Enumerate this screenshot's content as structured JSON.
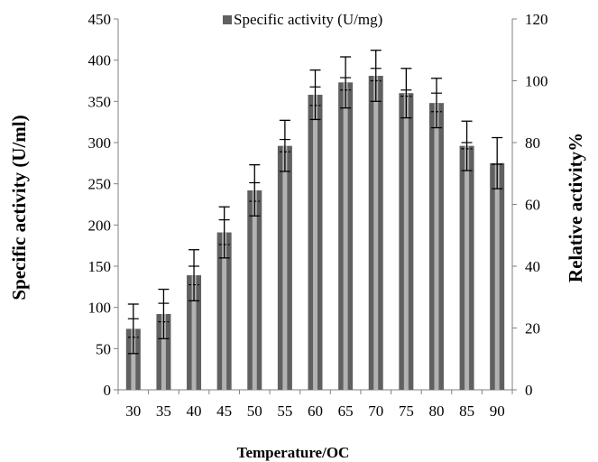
{
  "chart_data": {
    "type": "bar",
    "categories": [
      "30",
      "35",
      "40",
      "45",
      "50",
      "55",
      "60",
      "65",
      "70",
      "75",
      "80",
      "85",
      "90"
    ],
    "series": [
      {
        "name": "Specific activity (U/mg)",
        "values": [
          74,
          92,
          139,
          191,
          242,
          296,
          358,
          373,
          381,
          360,
          348,
          296,
          275
        ],
        "error": [
          30,
          30,
          31,
          31,
          31,
          31,
          30,
          31,
          31,
          30,
          30,
          30,
          31
        ],
        "color": "#606060",
        "stripe_color": "#b2b2b2"
      }
    ],
    "secondary_series": {
      "values": [
        20,
        25,
        37,
        51,
        64,
        79,
        95,
        99,
        102,
        96,
        93,
        79,
        73
      ],
      "error": [
        3,
        3,
        3,
        4,
        3,
        2,
        3,
        2,
        2,
        1,
        3,
        1,
        0
      ]
    },
    "xlabel": "Temperature/OC",
    "ylabel": "Specific activity (U/ml)",
    "y2label": "Relative activity%",
    "ylim": [
      0,
      450
    ],
    "y2lim": [
      0,
      120
    ],
    "yticks": [
      "0",
      "50",
      "100",
      "150",
      "200",
      "250",
      "300",
      "350",
      "400",
      "450"
    ],
    "y2ticks": [
      "0",
      "20",
      "40",
      "60",
      "80",
      "100",
      "120"
    ],
    "legend": {
      "label": "Specific activity (U/mg)",
      "position": "top-center"
    },
    "grid": false
  }
}
